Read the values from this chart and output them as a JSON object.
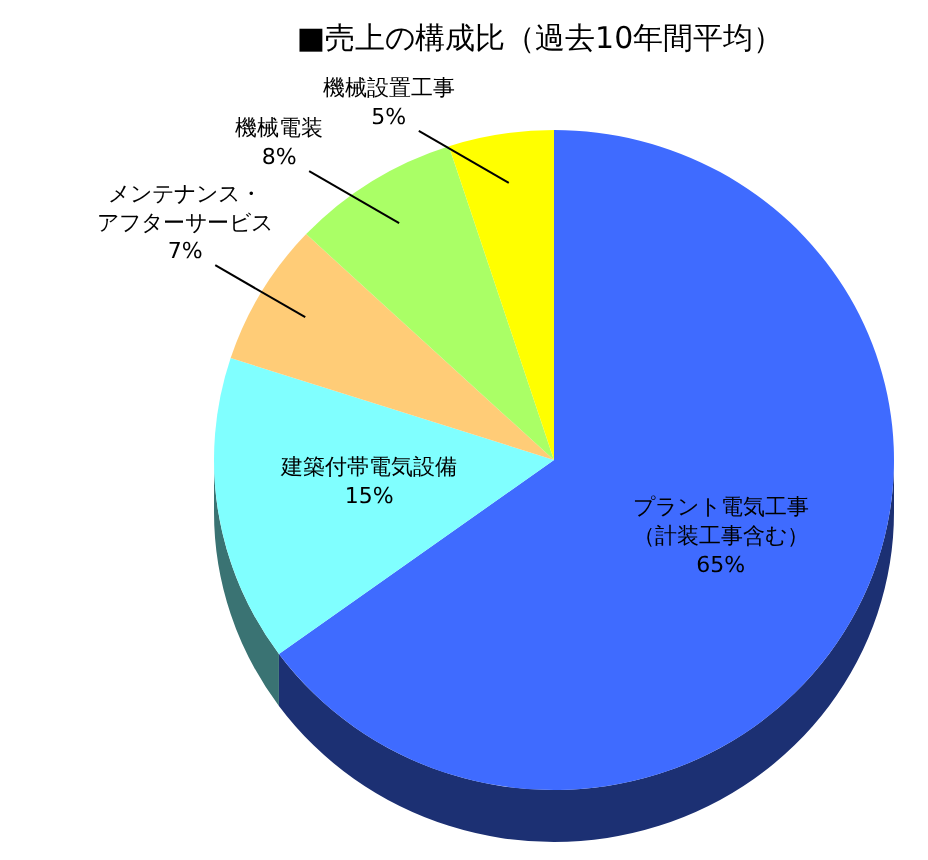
{
  "chart_data": {
    "type": "pie",
    "title": "■売上の構成比（過去10年間平均）",
    "categories": [
      "プラント電気工事（計装工事含む）",
      "建築付帯電気設備",
      "メンテナンス・アフターサービス",
      "機械電装",
      "機械設置工事"
    ],
    "values": [
      65,
      15,
      7,
      8,
      5
    ],
    "colors": [
      "#3f6bff",
      "#80ffff",
      "#ffcc77",
      "#aaff66",
      "#ffff00"
    ],
    "value_labels": [
      "65%",
      "15%",
      "7%",
      "8%",
      "5%"
    ],
    "legend": false
  }
}
